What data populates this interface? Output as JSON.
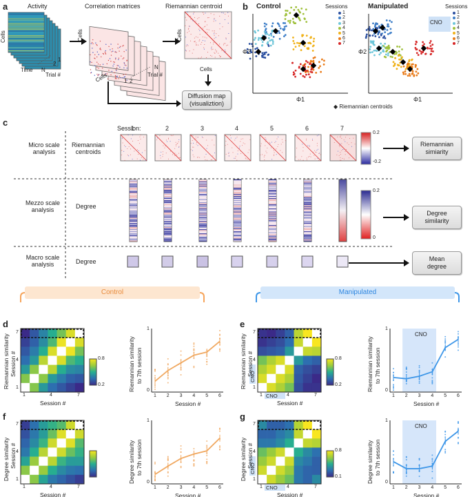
{
  "panels": {
    "a": "a",
    "b": "b",
    "c": "c",
    "d": "d",
    "e": "e",
    "f": "f",
    "g": "g"
  },
  "panel_a": {
    "activity_title": "Activity",
    "corr_title": "Correlation matrices",
    "centroid_title": "Riemannian centroid",
    "cells_label": "Cells",
    "time_label": "Time",
    "trial_label": "Trial #",
    "n_label": "N",
    "one_label": "1",
    "two_label": "2",
    "diffusion_line1": "Diffusion map",
    "diffusion_line2": "(visualiztion)"
  },
  "panel_b": {
    "control_title": "Control",
    "manipulated_title": "Manipulated",
    "sessions_label": "Sessions",
    "phi1": "Φ1",
    "phi2": "Φ2",
    "centroid_legend": "◆ Riemannian centroids",
    "cno": "CNO",
    "session_numbers": [
      "1",
      "2",
      "3",
      "4",
      "5",
      "6",
      "7"
    ],
    "session_colors": [
      "#2b4fa0",
      "#3f7fc8",
      "#6ec6d9",
      "#9fc03b",
      "#f0b21a",
      "#e97a17",
      "#d72828"
    ]
  },
  "panel_c": {
    "session_header": "Session:",
    "sessions": [
      "1",
      "2",
      "3",
      "4",
      "5",
      "6",
      "7"
    ],
    "micro_label_1": "Micro scale",
    "micro_label_2": "analysis",
    "mezzo_label_1": "Mezzo scale",
    "mezzo_label_2": "analysis",
    "macro_label_1": "Macro scale",
    "macro_label_2": "analysis",
    "riemannian_1": "Riemannian",
    "riemannian_2": "centroids",
    "degree": "Degree",
    "degree2": "Degree",
    "cbar1_top": "0.2",
    "cbar1_bottom": "-0.2",
    "cbar2_top": "0.2",
    "cbar2_bottom": "0",
    "out1_line1": "Riemannian",
    "out1_line2": "simiarity",
    "out2_line1": "Degree",
    "out2_line2": "similarity",
    "out3_line1": "Mean",
    "out3_line2": "degree"
  },
  "banners": {
    "control": "Control",
    "manipulated": "Manipulated",
    "control_color": "#f6a45a",
    "manipulated_color": "#3d96e8"
  },
  "panel_d": {
    "heat_ylabel_1": "Riemannian similarity",
    "heat_ylabel_2": "Session #",
    "heat_xlabel": "Session #",
    "ticks": [
      "1",
      "4",
      "7"
    ],
    "cbar_top": "0.8",
    "cbar_bottom": "0.2",
    "line_ylabel_1": "Riemannian similarity",
    "line_ylabel_2": "to 7th session",
    "line_xlabel": "Session #",
    "xticks": [
      "1",
      "2",
      "3",
      "4",
      "5",
      "6"
    ],
    "yticks": [
      "0",
      "1"
    ]
  },
  "panel_e": {
    "heat_ylabel_1": "Riemannian similarity",
    "heat_ylabel_2": "Session #",
    "heat_xlabel": "Session #",
    "ticks": [
      "1",
      "4",
      "7"
    ],
    "cno": "CNO",
    "cbar_top": "0.8",
    "cbar_bottom": "0.2",
    "line_ylabel_1": "Riemannian similarity",
    "line_ylabel_2": "to 7th session",
    "line_xlabel": "Session #",
    "xticks": [
      "1",
      "2",
      "3",
      "4",
      "5",
      "6"
    ],
    "yticks": [
      "0",
      "1"
    ]
  },
  "panel_f": {
    "heat_ylabel_1": "Degree similarity",
    "heat_ylabel_2": "Session #",
    "heat_xlabel": "Session #",
    "ticks": [
      "1",
      "4",
      "7"
    ],
    "line_ylabel_1": "Degree similarity",
    "line_ylabel_2": "to 7th session",
    "line_xlabel": "Session #",
    "xticks": [
      "1",
      "2",
      "3",
      "4",
      "5",
      "6"
    ],
    "yticks": [
      "0",
      "1"
    ]
  },
  "panel_g": {
    "heat_ylabel_1": "Degree similarity",
    "heat_ylabel_2": "Session #",
    "heat_xlabel": "Session #",
    "ticks": [
      "1",
      "4",
      "7"
    ],
    "cno": "CNO",
    "cbar_top": "0.8",
    "cbar_bottom": "0.1",
    "line_ylabel_1": "Degree similarity",
    "line_ylabel_2": "to 7th session",
    "line_xlabel": "Session #",
    "xticks": [
      "1",
      "2",
      "3",
      "4",
      "5",
      "6"
    ],
    "yticks": [
      "0",
      "1"
    ]
  },
  "chart_data": [
    {
      "type": "line",
      "id": "d-line",
      "title": "",
      "xlabel": "Session #",
      "ylabel": "Riemannian similarity to 7th session",
      "x": [
        1,
        2,
        3,
        4,
        5,
        6
      ],
      "series": [
        {
          "name": "Control mean",
          "values": [
            0.17,
            0.34,
            0.46,
            0.58,
            0.63,
            0.8
          ]
        }
      ],
      "ylim": [
        0,
        1
      ],
      "color": "#f0a860"
    },
    {
      "type": "line",
      "id": "e-line",
      "title": "",
      "xlabel": "Session #",
      "ylabel": "Riemannian similarity to 7th session",
      "x": [
        1,
        2,
        3,
        4,
        5,
        6
      ],
      "series": [
        {
          "name": "Manipulated mean",
          "values": [
            0.23,
            0.21,
            0.25,
            0.32,
            0.7,
            0.83
          ]
        }
      ],
      "ylim": [
        0,
        1
      ],
      "shaded_region": [
        1.7,
        4.3
      ],
      "color": "#3d96e8"
    },
    {
      "type": "line",
      "id": "f-line",
      "title": "",
      "xlabel": "Session #",
      "ylabel": "Degree similarity to 7th session",
      "x": [
        1,
        2,
        3,
        4,
        5,
        6
      ],
      "series": [
        {
          "name": "Control mean",
          "values": [
            0.15,
            0.28,
            0.4,
            0.47,
            0.52,
            0.72
          ]
        }
      ],
      "ylim": [
        0,
        1
      ],
      "color": "#f0a860"
    },
    {
      "type": "line",
      "id": "g-line",
      "title": "",
      "xlabel": "Session #",
      "ylabel": "Degree similarity to 7th session",
      "x": [
        1,
        2,
        3,
        4,
        5,
        6
      ],
      "series": [
        {
          "name": "Manipulated mean",
          "values": [
            0.35,
            0.24,
            0.24,
            0.28,
            0.67,
            0.83
          ]
        }
      ],
      "ylim": [
        0,
        1
      ],
      "shaded_region": [
        1.7,
        4.3
      ],
      "color": "#3d96e8"
    },
    {
      "type": "heatmap",
      "id": "d-heat",
      "rows": 7,
      "cols": 7,
      "xlabel": "Session #",
      "ylabel": "Session #",
      "range": [
        0.2,
        0.8
      ],
      "values": [
        [
          1.0,
          0.62,
          0.45,
          0.35,
          0.3,
          0.25,
          0.2
        ],
        [
          0.62,
          1.0,
          0.63,
          0.45,
          0.38,
          0.32,
          0.3
        ],
        [
          0.45,
          0.63,
          1.0,
          0.7,
          0.5,
          0.42,
          0.4
        ],
        [
          0.35,
          0.45,
          0.7,
          1.0,
          0.75,
          0.55,
          0.5
        ],
        [
          0.3,
          0.38,
          0.5,
          0.75,
          1.0,
          0.78,
          0.6
        ],
        [
          0.25,
          0.32,
          0.42,
          0.55,
          0.78,
          1.0,
          0.75
        ],
        [
          0.2,
          0.3,
          0.4,
          0.5,
          0.6,
          0.75,
          1.0
        ]
      ]
    },
    {
      "type": "heatmap",
      "id": "e-heat",
      "rows": 7,
      "cols": 7,
      "xlabel": "Session #",
      "ylabel": "Session #",
      "range": [
        0.2,
        0.8
      ],
      "values": [
        [
          1.0,
          0.75,
          0.68,
          0.6,
          0.28,
          0.22,
          0.22
        ],
        [
          0.75,
          1.0,
          0.75,
          0.68,
          0.3,
          0.25,
          0.2
        ],
        [
          0.68,
          0.75,
          1.0,
          0.75,
          0.32,
          0.28,
          0.25
        ],
        [
          0.6,
          0.68,
          0.75,
          1.0,
          0.45,
          0.35,
          0.32
        ],
        [
          0.28,
          0.3,
          0.32,
          0.45,
          1.0,
          0.72,
          0.7
        ],
        [
          0.22,
          0.25,
          0.28,
          0.35,
          0.72,
          1.0,
          0.82
        ],
        [
          0.22,
          0.2,
          0.25,
          0.32,
          0.7,
          0.82,
          1.0
        ]
      ]
    },
    {
      "type": "heatmap",
      "id": "f-heat",
      "rows": 7,
      "cols": 7,
      "xlabel": "Session #",
      "ylabel": "Session #",
      "range": [
        0.1,
        0.8
      ],
      "values": [
        [
          1.0,
          0.6,
          0.42,
          0.3,
          0.25,
          0.2,
          0.15
        ],
        [
          0.6,
          1.0,
          0.62,
          0.45,
          0.35,
          0.3,
          0.28
        ],
        [
          0.42,
          0.62,
          1.0,
          0.68,
          0.48,
          0.4,
          0.4
        ],
        [
          0.3,
          0.45,
          0.68,
          1.0,
          0.72,
          0.55,
          0.47
        ],
        [
          0.25,
          0.35,
          0.48,
          0.72,
          1.0,
          0.75,
          0.52
        ],
        [
          0.2,
          0.3,
          0.4,
          0.55,
          0.75,
          1.0,
          0.72
        ],
        [
          0.15,
          0.28,
          0.4,
          0.47,
          0.52,
          0.72,
          1.0
        ]
      ]
    },
    {
      "type": "heatmap",
      "id": "g-heat",
      "rows": 7,
      "cols": 7,
      "xlabel": "Session #",
      "ylabel": "Session #",
      "range": [
        0.1,
        0.8
      ],
      "values": [
        [
          1.0,
          0.72,
          0.62,
          0.55,
          0.3,
          0.25,
          0.35
        ],
        [
          0.72,
          1.0,
          0.72,
          0.62,
          0.3,
          0.25,
          0.24
        ],
        [
          0.62,
          0.72,
          1.0,
          0.72,
          0.35,
          0.3,
          0.24
        ],
        [
          0.55,
          0.62,
          0.72,
          1.0,
          0.45,
          0.35,
          0.28
        ],
        [
          0.3,
          0.3,
          0.35,
          0.45,
          1.0,
          0.7,
          0.67
        ],
        [
          0.25,
          0.25,
          0.3,
          0.35,
          0.7,
          1.0,
          0.83
        ],
        [
          0.35,
          0.24,
          0.24,
          0.28,
          0.67,
          0.83,
          1.0
        ]
      ]
    }
  ]
}
